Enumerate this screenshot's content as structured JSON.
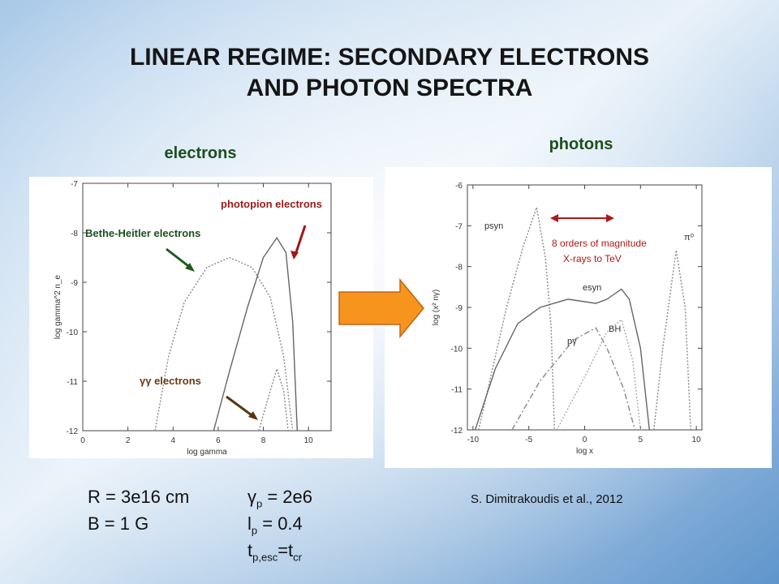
{
  "title": "LINEAR REGIME: SECONDARY ELECTRONS AND PHOTON SPECTRA",
  "panels": [
    {
      "label": "electrons",
      "chart": {
        "type": "line",
        "xlabel": "log gamma",
        "ylabel": "log gamma^2 n_e",
        "xlim": [
          0,
          11
        ],
        "xticks": [
          0,
          2,
          4,
          6,
          8,
          10
        ],
        "ylim": [
          -12,
          -7
        ],
        "yticks": [
          -12,
          -11,
          -10,
          -9,
          -8,
          -7
        ],
        "series": [
          {
            "name": "Bethe-Heitler electrons",
            "color": "#888888",
            "style": "dotted",
            "x": [
              3.2,
              3.8,
              4.5,
              5.5,
              6.5,
              7.5,
              8.3,
              8.9,
              9.3
            ],
            "y": [
              -12,
              -10.5,
              -9.4,
              -8.7,
              -8.5,
              -8.7,
              -9.3,
              -10.5,
              -12
            ]
          },
          {
            "name": "photopion electrons",
            "color": "#666666",
            "style": "solid",
            "x": [
              5.8,
              6.5,
              7.3,
              8,
              8.6,
              9,
              9.3,
              9.5
            ],
            "y": [
              -12,
              -10.8,
              -9.5,
              -8.5,
              -8.1,
              -8.4,
              -9.8,
              -12
            ]
          },
          {
            "name": "γγ electrons",
            "color": "#888888",
            "style": "dotted",
            "x": [
              7.8,
              8.3,
              8.6,
              8.9,
              9.1
            ],
            "y": [
              -12,
              -11.2,
              -10.75,
              -11.2,
              -12
            ]
          }
        ]
      }
    },
    {
      "label": "photons",
      "chart": {
        "type": "line",
        "xlabel": "log x",
        "ylabel": "log (x² nγ)",
        "xlim": [
          -10.5,
          10.5
        ],
        "xticks": [
          -10,
          -5,
          0,
          5,
          10
        ],
        "ylim": [
          -12,
          -6
        ],
        "yticks": [
          -12,
          -11,
          -10,
          -9,
          -8,
          -7,
          -6
        ],
        "annotations": [
          "8 orders of  magnitude",
          "X-rays to TeV"
        ],
        "series": [
          {
            "name": "psyn",
            "color": "#888888",
            "style": "dotted",
            "x": [
              -9.5,
              -7,
              -5.5,
              -4.3,
              -3.5,
              -3,
              -2.7
            ],
            "y": [
              -12,
              -9,
              -7.5,
              -6.55,
              -7.8,
              -9.5,
              -12
            ]
          },
          {
            "name": "esyn",
            "color": "#666666",
            "style": "solid",
            "x": [
              -9.8,
              -8,
              -6,
              -4,
              -1.5,
              1,
              2,
              3.3,
              4,
              5,
              5.8
            ],
            "y": [
              -12,
              -10.5,
              -9.4,
              -9,
              -8.8,
              -8.9,
              -8.8,
              -8.55,
              -8.8,
              -10,
              -12
            ]
          },
          {
            "name": "pγ",
            "color": "#888888",
            "style": "dashdot",
            "x": [
              -6.5,
              -4,
              -1,
              1,
              2,
              3.5,
              4.5
            ],
            "y": [
              -12,
              -10.8,
              -9.8,
              -9.5,
              -10,
              -11,
              -12
            ]
          },
          {
            "name": "BH",
            "color": "#aaaaaa",
            "style": "dotted",
            "x": [
              -2.5,
              0,
              2,
              3.3,
              4.3,
              5
            ],
            "y": [
              -12,
              -10.7,
              -9.6,
              -9.3,
              -10.3,
              -12
            ]
          },
          {
            "name": "π⁰",
            "color": "#888888",
            "style": "dotted",
            "x": [
              6.2,
              7,
              8.2,
              9,
              9.5
            ],
            "y": [
              -12,
              -10,
              -7.6,
              -9,
              -12
            ]
          }
        ]
      }
    }
  ],
  "params": [
    {
      "parts": [
        {
          "text": "R = 3e16 cm"
        }
      ]
    },
    {
      "parts": [
        {
          "text": "B = 1 G"
        }
      ]
    },
    {
      "parts": [
        {
          "text": "γ"
        },
        {
          "sub": "p"
        },
        {
          "text": " = 2e6"
        }
      ]
    },
    {
      "parts": [
        {
          "text": "l"
        },
        {
          "sub": "p"
        },
        {
          "text": " = 0.4"
        }
      ]
    },
    {
      "parts": [
        {
          "text": "t"
        },
        {
          "sub": "p,esc"
        },
        {
          "text": "=t"
        },
        {
          "sub": "cr"
        }
      ]
    }
  ],
  "citation": "S. Dimitrakoudis et al., 2012"
}
